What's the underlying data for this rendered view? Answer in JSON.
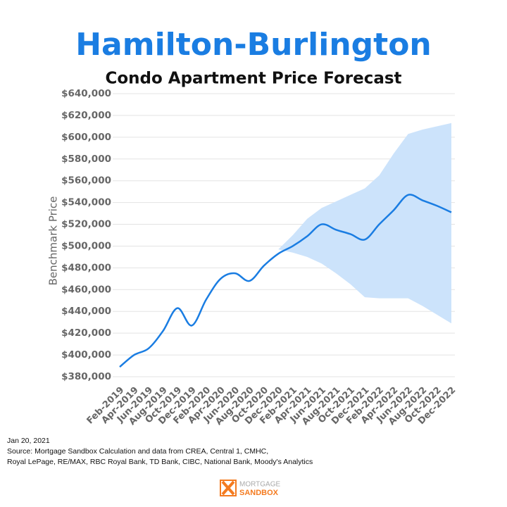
{
  "chart_data": {
    "type": "line",
    "title": "Hamilton-Burlington",
    "subtitle": "Condo Apartment Price Forecast",
    "y_label": "Benchmark Price",
    "categories": [
      "Feb-2019",
      "Apr-2019",
      "Jun-2019",
      "Aug-2019",
      "Oct-2019",
      "Dec-2019",
      "Feb-2020",
      "Apr-2020",
      "Jun-2020",
      "Aug-2020",
      "Oct-2020",
      "Dec-2020",
      "Feb-2021",
      "Apr-2021",
      "Jun-2021",
      "Aug-2021",
      "Oct-2021",
      "Dec-2021",
      "Feb-2022",
      "Apr-2022",
      "Jun-2022",
      "Aug-2022",
      "Oct-2022",
      "Dec-2022"
    ],
    "values": [
      389000,
      400000,
      406000,
      422000,
      443000,
      427000,
      451000,
      470000,
      475000,
      468000,
      482000,
      493000,
      500000,
      509000,
      520000,
      515000,
      511000,
      506000,
      520000,
      533000,
      547000,
      542000,
      537000,
      531000
    ],
    "color": "#1a7de2",
    "band": {
      "color": "#cce3fb",
      "upper": [
        null,
        null,
        null,
        null,
        null,
        null,
        null,
        null,
        null,
        null,
        null,
        497000,
        510000,
        525000,
        535000,
        541000,
        547000,
        553000,
        565000,
        585000,
        603000,
        607000,
        610000,
        613000
      ],
      "lower": [
        null,
        null,
        null,
        null,
        null,
        null,
        null,
        null,
        null,
        null,
        null,
        497000,
        494000,
        490000,
        484000,
        475000,
        465000,
        453000,
        452000,
        452000,
        452000,
        445000,
        437000,
        429000
      ]
    },
    "ylim": [
      380000,
      640000
    ],
    "yticks": [
      {
        "value": 380000,
        "label": "$380,000"
      },
      {
        "value": 400000,
        "label": "$400,000"
      },
      {
        "value": 420000,
        "label": "$420,000"
      },
      {
        "value": 440000,
        "label": "$440,000"
      },
      {
        "value": 460000,
        "label": "$460,000"
      },
      {
        "value": 480000,
        "label": "$480,000"
      },
      {
        "value": 500000,
        "label": "$500,000"
      },
      {
        "value": 520000,
        "label": "$520,000"
      },
      {
        "value": 540000,
        "label": "$540,000"
      },
      {
        "value": 560000,
        "label": "$560,000"
      },
      {
        "value": 580000,
        "label": "$580,000"
      },
      {
        "value": 600000,
        "label": "$600,000"
      },
      {
        "value": 620000,
        "label": "$620,000"
      },
      {
        "value": 640000,
        "label": "$640,000"
      }
    ],
    "grid": true
  },
  "notes": [
    "Jan 20, 2021",
    "Source: Mortgage Sandbox Calculation and data from CREA, Central 1, CMHC,",
    "Royal LePage, RE/MAX, RBC Royal Bank, TD Bank, CIBC, National Bank, Moody's Analytics"
  ],
  "logo": {
    "line1": "MORTGAGE",
    "line2": "SANDBOX"
  }
}
